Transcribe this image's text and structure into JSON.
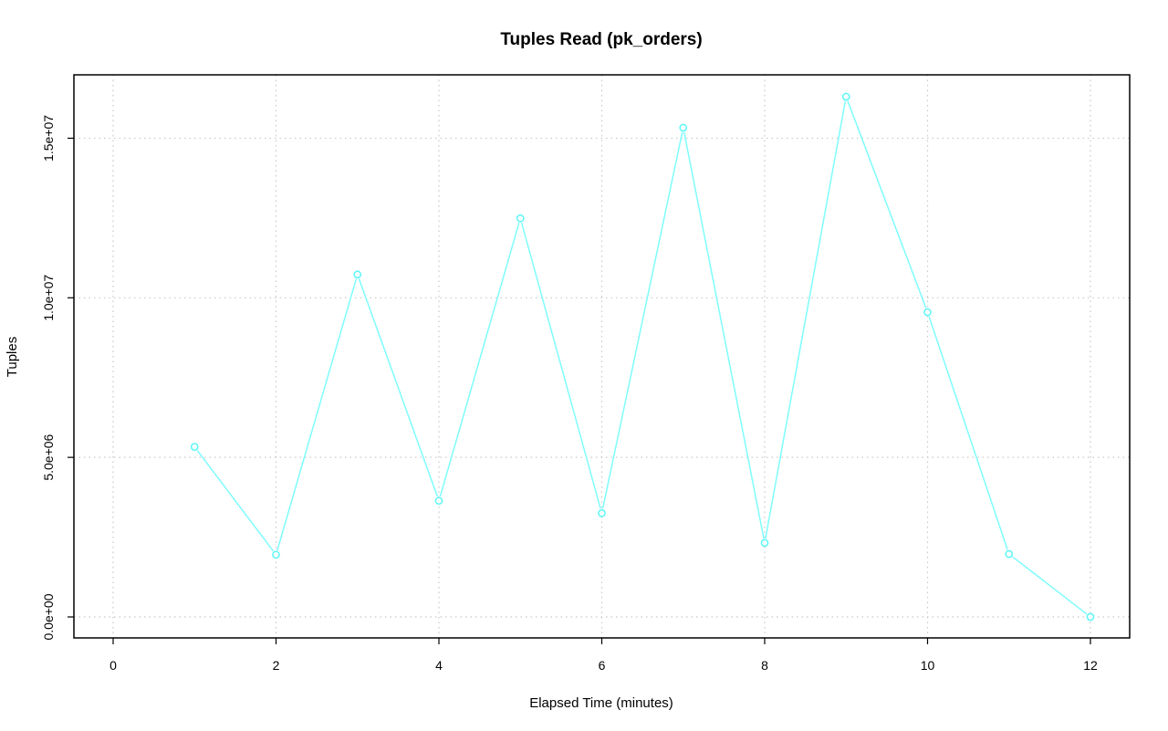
{
  "chart_data": {
    "type": "line",
    "title": "Tuples Read (pk_orders)",
    "xlabel": "Elapsed Time (minutes)",
    "ylabel": "Tuples",
    "xlim": [
      0,
      12
    ],
    "ylim": [
      0,
      16300000
    ],
    "x_ticks": [
      0,
      2,
      4,
      6,
      8,
      10,
      12
    ],
    "x_tick_labels": [
      "0",
      "2",
      "4",
      "6",
      "8",
      "10",
      "12"
    ],
    "y_ticks": [
      0,
      5000000,
      10000000,
      15000000
    ],
    "y_tick_labels": [
      "0.0e+00",
      "5.0e+06",
      "1.0e+07",
      "1.5e+07"
    ],
    "grid": true,
    "series": [
      {
        "color": "#7ffcfc",
        "x": [
          1,
          2,
          3,
          4,
          5,
          6,
          7,
          8,
          9,
          10,
          11,
          12
        ],
        "values": [
          5330000,
          1950000,
          10730000,
          3640000,
          12490000,
          3250000,
          15330000,
          2320000,
          16300000,
          9550000,
          1970000,
          0
        ]
      }
    ]
  }
}
